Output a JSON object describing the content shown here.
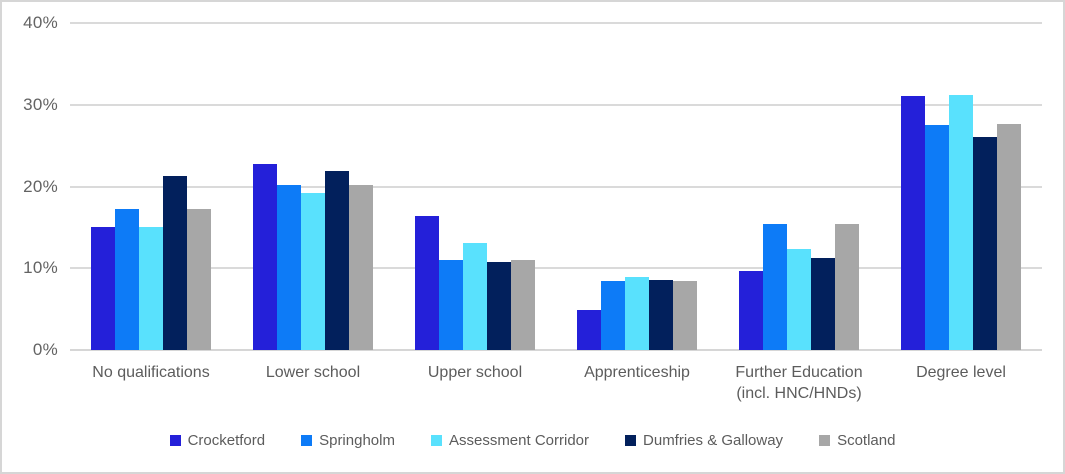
{
  "chart_data": {
    "type": "bar",
    "title": "",
    "xlabel": "",
    "ylabel": "",
    "ylim": [
      0,
      40
    ],
    "grid": true,
    "legend_position": "bottom",
    "y_ticks": [
      "40%",
      "30%",
      "20%",
      "10%",
      "0%"
    ],
    "categories": [
      "No qualifications",
      "Lower school",
      "Upper school",
      "Apprenticeship",
      "Further Education\n(incl. HNC/HNDs)",
      "Degree level"
    ],
    "series": [
      {
        "name": "Crocketford",
        "color": "#2420d9",
        "values": [
          15.0,
          22.8,
          16.4,
          4.9,
          9.7,
          31.1
        ]
      },
      {
        "name": "Springholm",
        "color": "#0d7bf7",
        "values": [
          17.3,
          20.2,
          11.0,
          8.5,
          15.4,
          27.5
        ]
      },
      {
        "name": "Assessment Corridor",
        "color": "#59e1fd",
        "values": [
          15.0,
          19.2,
          13.1,
          8.9,
          12.4,
          31.2
        ]
      },
      {
        "name": "Dumfries & Galloway",
        "color": "#02205c",
        "values": [
          21.3,
          21.9,
          10.8,
          8.6,
          11.2,
          26.1
        ]
      },
      {
        "name": "Scotland",
        "color": "#a7a7a7",
        "values": [
          17.3,
          20.2,
          11.0,
          8.5,
          15.4,
          27.6
        ]
      }
    ]
  }
}
